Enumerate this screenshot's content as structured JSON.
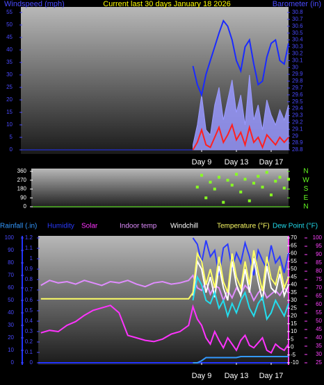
{
  "chart_data": [
    {
      "type": "line",
      "title": "Current last 30 days January 18 2026",
      "ylabel": "Windspeed (mph)",
      "y2label": "Barometer (in)",
      "x": [
        8,
        8.5,
        9,
        9.5,
        10,
        10.5,
        11,
        11.5,
        12,
        12.5,
        13,
        13.5,
        14,
        14.5,
        15,
        15.5,
        16,
        16.5,
        17,
        17.5,
        18,
        18.5,
        19
      ],
      "xlim": [
        -11.8,
        19
      ],
      "xticks": [
        {
          "value": 9,
          "label": "Day 9"
        },
        {
          "value": 13,
          "label": "Day 13"
        },
        {
          "value": 17,
          "label": "Day 17"
        }
      ],
      "ylim": [
        0,
        55
      ],
      "yticks": [
        0,
        5,
        10,
        15,
        20,
        25,
        30,
        35,
        40,
        45,
        50,
        55
      ],
      "y2lim": [
        28.8,
        30.8
      ],
      "y2ticks": [
        28.8,
        28.9,
        29,
        29.1,
        29.2,
        29.3,
        29.4,
        29.5,
        29.6,
        29.7,
        29.8,
        29.9,
        30,
        30.1,
        30.2,
        30.3,
        30.4,
        30.5,
        30.6,
        30.7,
        30.8
      ],
      "series": [
        {
          "color": "#9a9aff",
          "area": true,
          "values": [
            2,
            10,
            22,
            8,
            6,
            18,
            25,
            12,
            20,
            28,
            15,
            22,
            10,
            30,
            12,
            18,
            8,
            20,
            14,
            10,
            16,
            12,
            18
          ]
        },
        {
          "color": "#ff2020",
          "values": [
            0,
            3,
            8,
            2,
            1,
            5,
            9,
            3,
            6,
            10,
            4,
            7,
            2,
            9,
            3,
            5,
            1,
            6,
            4,
            2,
            5,
            3,
            5
          ]
        },
        {
          "color": "#1a2aff",
          "axis": "y2",
          "values": [
            30.02,
            29.75,
            29.6,
            29.9,
            30.1,
            30.3,
            30.5,
            30.68,
            30.6,
            30.4,
            30.1,
            29.95,
            30.3,
            30.4,
            30.05,
            29.75,
            29.8,
            30.15,
            30.35,
            30.4,
            30.1,
            30.05,
            30.35
          ]
        }
      ]
    },
    {
      "type": "scatter",
      "color": "#88ff22",
      "x": [
        8.5,
        9,
        9.5,
        10,
        10.5,
        11,
        11.5,
        12,
        12.5,
        13,
        13.5,
        14,
        14.5,
        15,
        15.5,
        16,
        16.5,
        17,
        17.5,
        18,
        18.5,
        19
      ],
      "values": [
        200,
        320,
        90,
        250,
        180,
        300,
        45,
        270,
        220,
        330,
        150,
        280,
        60,
        240,
        310,
        200,
        350,
        120,
        260,
        300,
        190,
        280
      ],
      "xlim": [
        -10.6,
        19
      ],
      "ylim": [
        0,
        360
      ],
      "yticks": [
        0,
        90,
        180,
        270,
        360
      ],
      "y2lim": [
        0,
        360
      ],
      "y2ticks": [
        {
          "value": 0,
          "label": "N"
        },
        {
          "value": 90,
          "label": "E"
        },
        {
          "value": 180,
          "label": "S"
        },
        {
          "value": 270,
          "label": "W"
        },
        {
          "value": 360,
          "label": "N"
        }
      ]
    },
    {
      "type": "line",
      "x": [
        -9.5,
        -8.5,
        -7.5,
        -6.5,
        -5.5,
        -4.5,
        -3.5,
        -2.5,
        -1.5,
        -0.5,
        0.5,
        1.5,
        2.5,
        3.5,
        4.5,
        5.5,
        6.5,
        7.5,
        8,
        8.5,
        9,
        9.5,
        10,
        10.5,
        11,
        11.5,
        12,
        12.5,
        13,
        13.5,
        14,
        14.5,
        15,
        15.5,
        16,
        16.5,
        17,
        17.5,
        18,
        18.5,
        19
      ],
      "xlim": [
        -9.8,
        19
      ],
      "xticks": [
        {
          "value": 9,
          "label": "Day 9"
        },
        {
          "value": 13,
          "label": "Day 13"
        },
        {
          "value": 17,
          "label": "Day 17"
        }
      ],
      "ylim": [
        0,
        100
      ],
      "yticks": [
        0,
        10,
        20,
        30,
        40,
        50,
        60,
        70,
        80,
        90,
        100
      ],
      "y2lim": [
        0,
        1.2
      ],
      "y2ticks": [
        0,
        0.1,
        0.2,
        0.3,
        0.4,
        0.5,
        0.6,
        0.7,
        0.8,
        0.9,
        1,
        1.1,
        1.2
      ],
      "y3lim": [
        -10,
        70
      ],
      "y3ticks": [
        -10,
        -5,
        0,
        5,
        10,
        15,
        20,
        25,
        30,
        35,
        40,
        45,
        50,
        55,
        60,
        65,
        70
      ],
      "y4lim": [
        25,
        100
      ],
      "y4ticks": [
        25,
        30,
        35,
        40,
        45,
        50,
        55,
        60,
        65,
        70,
        75,
        80,
        85,
        90,
        95,
        100
      ],
      "series": [
        {
          "name": "Rainfall (.in)",
          "color": "#3399ff",
          "axis": "y2",
          "values": [
            null,
            null,
            null,
            null,
            null,
            null,
            null,
            null,
            null,
            null,
            null,
            null,
            null,
            null,
            null,
            null,
            null,
            null,
            0,
            0,
            0.02,
            0.05,
            0.05,
            0.05,
            0.05,
            0.05,
            0.05,
            0.05,
            0.05,
            0.06,
            0.06,
            0.06,
            0.06,
            0.06,
            0.06,
            0.06,
            0.06,
            0.06,
            0.06,
            0.06,
            0.06
          ]
        },
        {
          "name": "Humidity",
          "color": "#2a3aff",
          "axis": "y",
          "values": [
            null,
            null,
            null,
            null,
            null,
            null,
            null,
            null,
            null,
            null,
            null,
            null,
            null,
            null,
            null,
            null,
            null,
            null,
            100,
            95,
            80,
            98,
            85,
            90,
            70,
            92,
            95,
            75,
            88,
            80,
            96,
            85,
            70,
            90,
            82,
            75,
            94,
            80,
            85,
            72,
            88
          ]
        },
        {
          "name": "Solar",
          "color": "#ff33ff",
          "axis": "y",
          "values": [
            24,
            26,
            25,
            30,
            33,
            38,
            42,
            44,
            46,
            40,
            22,
            20,
            18,
            17,
            19,
            23,
            25,
            30,
            45,
            35,
            30,
            20,
            15,
            25,
            18,
            12,
            20,
            15,
            10,
            18,
            22,
            14,
            12,
            16,
            20,
            10,
            8,
            15,
            12,
            10,
            15
          ]
        },
        {
          "name": "Indoor temp",
          "color": "#e08cff",
          "axis": "y",
          "values": [
            62,
            66,
            64,
            65,
            63,
            66,
            64,
            62,
            65,
            64,
            66,
            63,
            61,
            64,
            65,
            63,
            64,
            66,
            70,
            60,
            58,
            65,
            55,
            62,
            60,
            50,
            58,
            52,
            60,
            55,
            62,
            58,
            50,
            56,
            60,
            52,
            55,
            58,
            54,
            60,
            56
          ]
        },
        {
          "name": "Windchill",
          "color": "#ffffff",
          "axis": "y3",
          "values": [
            null,
            null,
            null,
            null,
            null,
            null,
            null,
            null,
            null,
            null,
            null,
            null,
            null,
            null,
            null,
            null,
            null,
            null,
            33,
            55,
            50,
            35,
            45,
            32,
            52,
            38,
            30,
            55,
            40,
            33,
            50,
            35,
            57,
            42,
            30,
            52,
            38,
            35,
            47,
            33,
            40
          ]
        },
        {
          "name": "Temperature (°F)",
          "color": "#ffff66",
          "axis": "y3",
          "values": [
            31,
            31,
            31,
            31,
            31,
            31,
            31,
            31,
            31,
            31,
            31,
            31,
            31,
            31,
            31,
            31,
            31,
            31,
            35,
            60,
            55,
            40,
            50,
            38,
            58,
            42,
            35,
            60,
            45,
            38,
            55,
            40,
            62,
            48,
            36,
            58,
            44,
            40,
            52,
            38,
            45
          ]
        },
        {
          "name": "Dew Point (°F)",
          "color": "#22ddee",
          "axis": "y3",
          "values": [
            null,
            null,
            null,
            null,
            null,
            null,
            null,
            null,
            null,
            null,
            null,
            null,
            null,
            null,
            null,
            null,
            null,
            null,
            30,
            45,
            40,
            30,
            28,
            35,
            25,
            30,
            20,
            28,
            22,
            30,
            35,
            25,
            20,
            28,
            32,
            18,
            22,
            30,
            25,
            20,
            28
          ]
        }
      ]
    }
  ]
}
